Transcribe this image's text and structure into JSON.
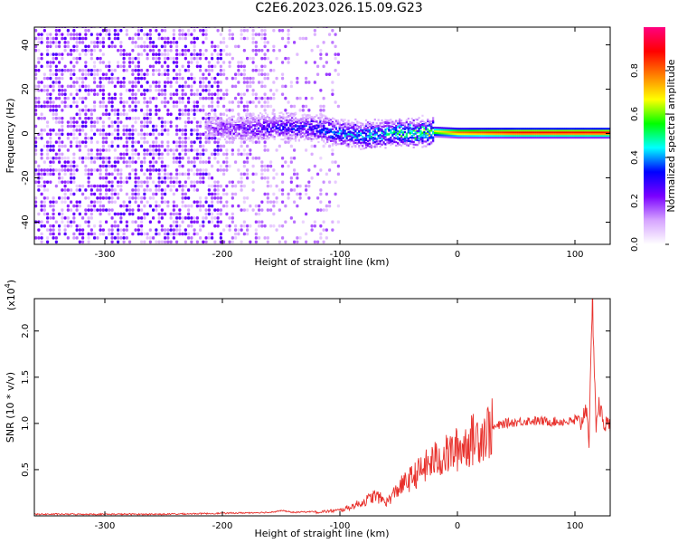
{
  "title": "C2E6.2023.026.15.09.G23",
  "chart_data": [
    {
      "type": "heatmap",
      "xlabel": "Height of straight line (km)",
      "ylabel": "Frequency (Hz)",
      "xlim": [
        -360,
        130
      ],
      "ylim": [
        -50,
        48
      ],
      "xticks": [
        -300,
        -200,
        -100,
        0,
        100
      ],
      "yticks": [
        -40,
        -20,
        0,
        20,
        40
      ],
      "colorbar": {
        "label": "Normalized spectral amplitude",
        "ticks": [
          "0.0",
          "0.2",
          "0.4",
          "0.6",
          "0.8"
        ],
        "range": [
          0,
          1
        ],
        "colors": [
          "#ffffff",
          "#d6a4ff",
          "#7a00ff",
          "#0000ff",
          "#00ffff",
          "#00ff00",
          "#ffff00",
          "#ff8000",
          "#ff0000",
          "#ff0080"
        ]
      },
      "ridge": [
        {
          "x": -215,
          "f": 2.5,
          "amp": 0.2
        },
        {
          "x": -180,
          "f": 2,
          "amp": 0.3
        },
        {
          "x": -150,
          "f": 3,
          "amp": 0.35
        },
        {
          "x": -120,
          "f": 2,
          "amp": 0.4
        },
        {
          "x": -100,
          "f": 0,
          "amp": 0.45
        },
        {
          "x": -80,
          "f": -1,
          "amp": 0.5
        },
        {
          "x": -60,
          "f": 0,
          "amp": 0.55
        },
        {
          "x": -40,
          "f": 0,
          "amp": 0.6
        },
        {
          "x": -20,
          "f": 0.5,
          "amp": 0.7
        },
        {
          "x": 0,
          "f": 0,
          "amp": 0.85
        },
        {
          "x": 50,
          "f": 0,
          "amp": 0.95
        },
        {
          "x": 100,
          "f": 0,
          "amp": 0.95
        },
        {
          "x": 130,
          "f": 0,
          "amp": 0.95
        }
      ],
      "noise_extent_x": [
        -360,
        -100
      ]
    },
    {
      "type": "line",
      "xlabel": "Height of straight line (km)",
      "ylabel": "SNR (10 * v/v)",
      "scale_label": "(x10",
      "scale_exp": "4",
      "scale_close": ")",
      "xlim": [
        -360,
        130
      ],
      "ylim": [
        0,
        2.35
      ],
      "xticks": [
        -300,
        -200,
        -100,
        0,
        100
      ],
      "yticks": [
        "0.5",
        "1.0",
        "1.5",
        "2.0"
      ],
      "color": "#e8302b",
      "x": [
        -360,
        -250,
        -200,
        -160,
        -150,
        -140,
        -120,
        -100,
        -90,
        -80,
        -70,
        -60,
        -50,
        -40,
        -30,
        -20,
        -10,
        0,
        10,
        20,
        30,
        40,
        60,
        80,
        100,
        105,
        110,
        112,
        115,
        118,
        120,
        125,
        130
      ],
      "y": [
        0.01,
        0.01,
        0.02,
        0.03,
        0.05,
        0.03,
        0.04,
        0.06,
        0.1,
        0.15,
        0.22,
        0.15,
        0.3,
        0.4,
        0.5,
        0.6,
        0.65,
        0.72,
        0.8,
        0.88,
        0.95,
        1.0,
        1.03,
        1.02,
        1.02,
        1.0,
        1.2,
        0.8,
        2.35,
        0.95,
        1.2,
        1.0,
        0.97
      ]
    }
  ]
}
